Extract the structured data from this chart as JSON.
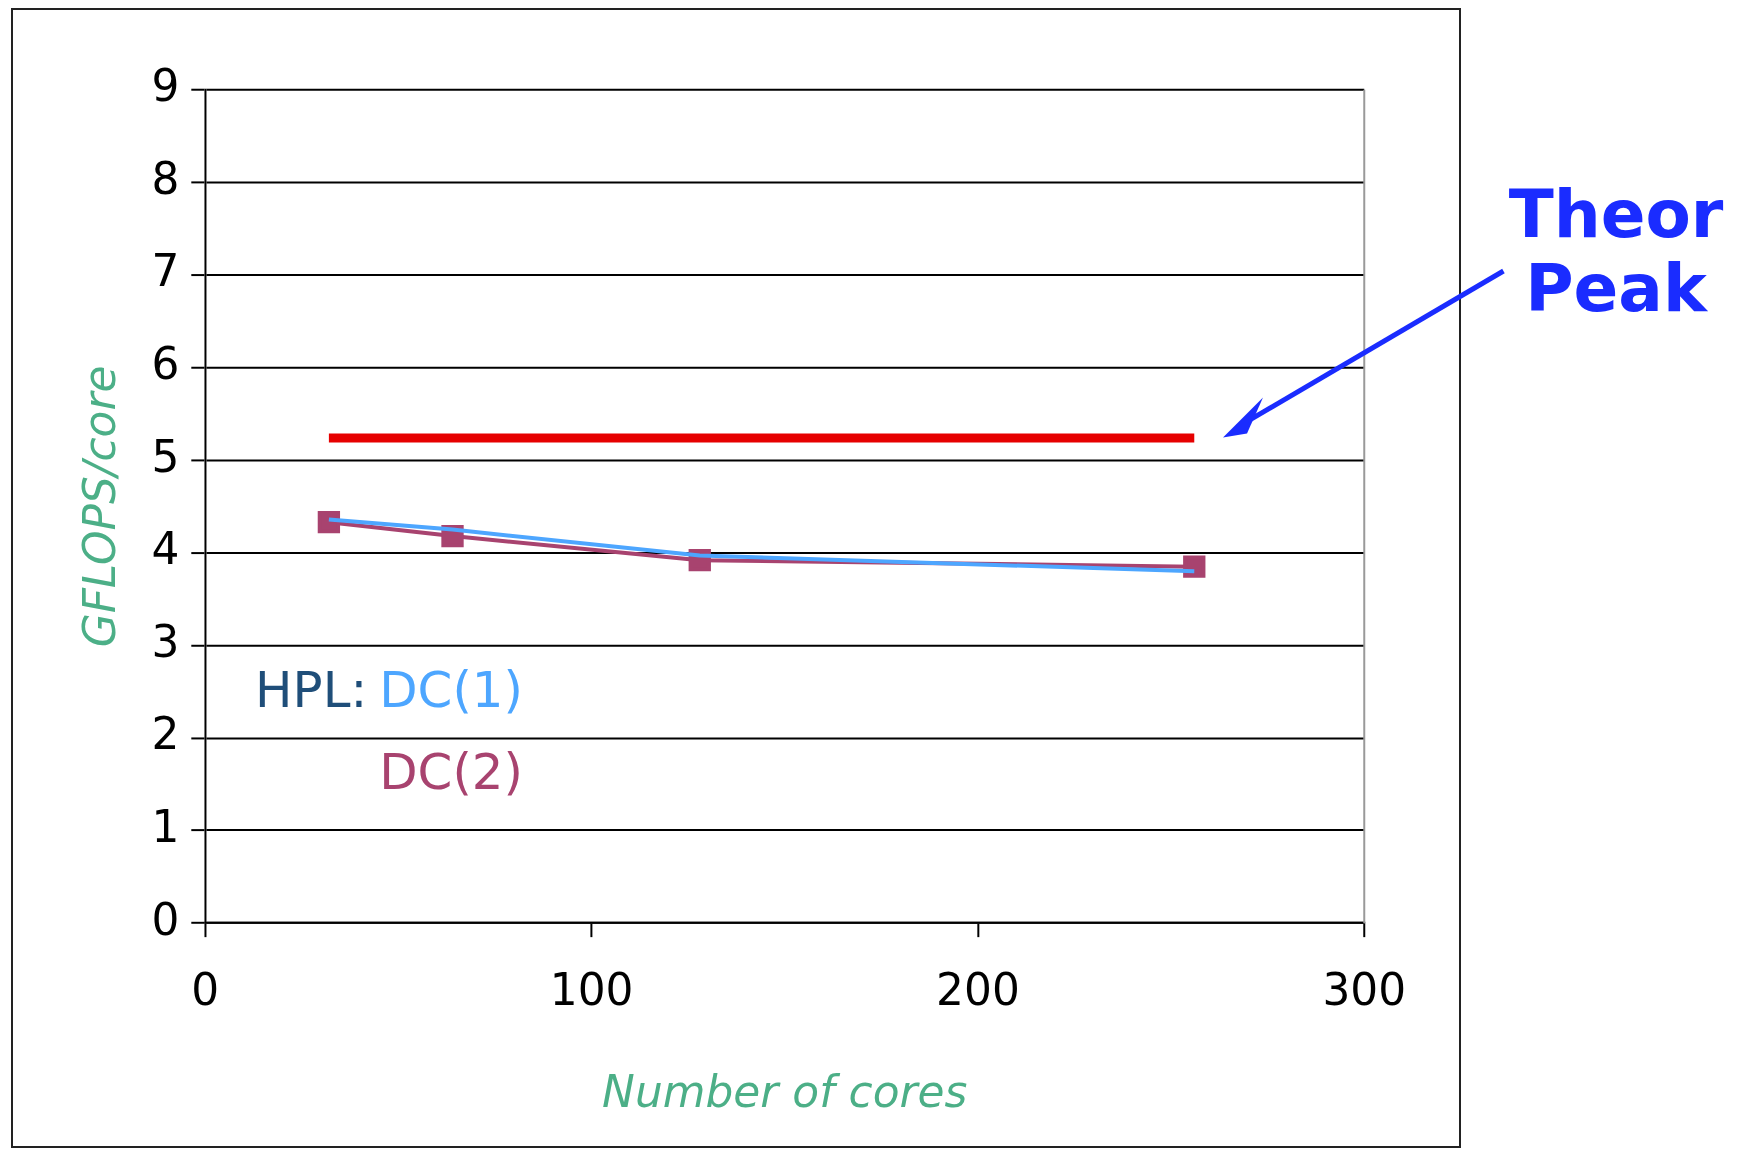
{
  "chart_data": {
    "type": "line",
    "xlabel": "Number of cores",
    "ylabel": "GFLOPS/core",
    "legend_title": "HPL:",
    "xlim": [
      0,
      300
    ],
    "xticks": [
      0,
      100,
      200,
      300
    ],
    "ylim": [
      0,
      9
    ],
    "yticks": [
      0,
      1,
      2,
      3,
      4,
      5,
      6,
      7,
      8,
      9
    ],
    "grid": "y",
    "legend": "bottom left",
    "marker": "square",
    "annotations": [
      "Theor Peak"
    ],
    "series": [
      {
        "name": "DC(1)",
        "color": "#4da6ff",
        "marker": "none",
        "x": [
          32,
          64,
          128,
          256
        ],
        "values": [
          4.36,
          4.25,
          3.97,
          3.8
        ]
      },
      {
        "name": "DC(2)",
        "color": "#a8436f",
        "x": [
          32,
          64,
          128,
          256
        ],
        "values": [
          4.33,
          4.18,
          3.92,
          3.85
        ]
      },
      {
        "color": "#e60000",
        "marker": "none",
        "x": [
          32,
          256
        ],
        "values": [
          5.24,
          5.24
        ]
      }
    ]
  }
}
